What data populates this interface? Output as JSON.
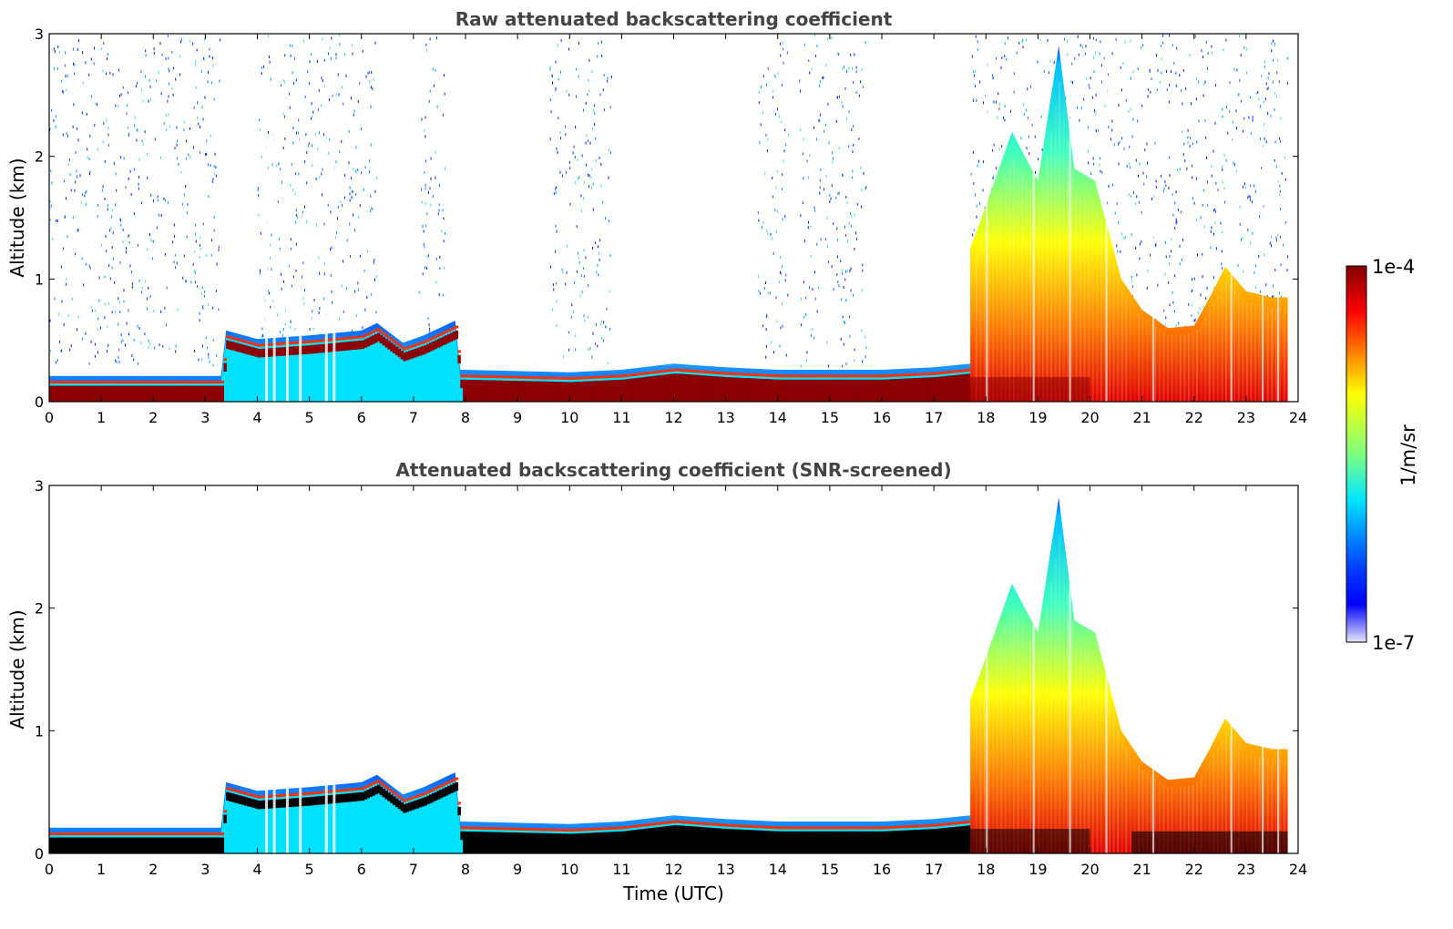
{
  "chart_data": [
    {
      "type": "heatmap",
      "title": "Raw attenuated backscattering coefficient",
      "xlabel": "",
      "ylabel": "Altitude (km)",
      "xlim": [
        0,
        24
      ],
      "ylim": [
        0,
        3
      ],
      "xticks": [
        "0",
        "1",
        "2",
        "3",
        "4",
        "5",
        "6",
        "7",
        "8",
        "9",
        "10",
        "11",
        "12",
        "13",
        "14",
        "15",
        "16",
        "17",
        "18",
        "19",
        "20",
        "21",
        "22",
        "23",
        "24"
      ],
      "yticks": [
        "0",
        "1",
        "2",
        "3"
      ],
      "boundary_layer_km": [
        [
          0,
          0.15
        ],
        [
          3.3,
          0.15
        ],
        [
          3.4,
          0.52
        ],
        [
          4.0,
          0.45
        ],
        [
          5.0,
          0.48
        ],
        [
          6.0,
          0.52
        ],
        [
          6.3,
          0.58
        ],
        [
          6.8,
          0.42
        ],
        [
          7.2,
          0.48
        ],
        [
          7.8,
          0.6
        ],
        [
          7.9,
          0.2
        ],
        [
          10,
          0.18
        ],
        [
          11,
          0.2
        ],
        [
          12,
          0.25
        ],
        [
          13,
          0.22
        ],
        [
          14,
          0.2
        ],
        [
          15,
          0.2
        ],
        [
          16,
          0.2
        ],
        [
          17,
          0.22
        ],
        [
          17.7,
          0.25
        ]
      ],
      "plume_top_km": [
        [
          17.7,
          1.25
        ],
        [
          18.0,
          1.6
        ],
        [
          18.5,
          2.2
        ],
        [
          19.0,
          1.8
        ],
        [
          19.4,
          2.9
        ],
        [
          19.7,
          1.9
        ],
        [
          20.1,
          1.8
        ],
        [
          20.6,
          1.0
        ],
        [
          21.0,
          0.75
        ],
        [
          21.5,
          0.6
        ],
        [
          22.0,
          0.62
        ],
        [
          22.3,
          0.85
        ],
        [
          22.6,
          1.1
        ],
        [
          23.0,
          0.9
        ],
        [
          23.5,
          0.85
        ],
        [
          23.8,
          0.85
        ]
      ],
      "noise_columns_hours": [
        [
          0,
          3.3
        ],
        [
          4.0,
          6.3
        ],
        [
          7.1,
          7.6
        ],
        [
          9.6,
          10.8
        ],
        [
          13.6,
          14.2
        ],
        [
          14.4,
          15.7
        ],
        [
          17.7,
          23.8
        ]
      ]
    },
    {
      "type": "heatmap",
      "title": "Attenuated backscattering coefficient (SNR-screened)",
      "xlabel": "Time (UTC)",
      "ylabel": "Altitude (km)",
      "xlim": [
        0,
        24
      ],
      "ylim": [
        0,
        3
      ],
      "xticks": [
        "0",
        "1",
        "2",
        "3",
        "4",
        "5",
        "6",
        "7",
        "8",
        "9",
        "10",
        "11",
        "12",
        "13",
        "14",
        "15",
        "16",
        "17",
        "18",
        "19",
        "20",
        "21",
        "22",
        "23",
        "24"
      ],
      "yticks": [
        "0",
        "1",
        "2",
        "3"
      ],
      "boundary_layer_km": [
        [
          0,
          0.15
        ],
        [
          3.3,
          0.15
        ],
        [
          3.4,
          0.52
        ],
        [
          4.0,
          0.45
        ],
        [
          5.0,
          0.48
        ],
        [
          6.0,
          0.52
        ],
        [
          6.3,
          0.58
        ],
        [
          6.8,
          0.42
        ],
        [
          7.2,
          0.48
        ],
        [
          7.8,
          0.6
        ],
        [
          7.9,
          0.2
        ],
        [
          10,
          0.18
        ],
        [
          11,
          0.2
        ],
        [
          12,
          0.25
        ],
        [
          13,
          0.22
        ],
        [
          14,
          0.2
        ],
        [
          15,
          0.2
        ],
        [
          16,
          0.2
        ],
        [
          17,
          0.22
        ],
        [
          17.7,
          0.25
        ]
      ],
      "plume_top_km": [
        [
          17.7,
          1.25
        ],
        [
          18.0,
          1.6
        ],
        [
          18.5,
          2.2
        ],
        [
          19.0,
          1.8
        ],
        [
          19.4,
          2.9
        ],
        [
          19.7,
          1.9
        ],
        [
          20.1,
          1.8
        ],
        [
          20.6,
          1.0
        ],
        [
          21.0,
          0.75
        ],
        [
          21.5,
          0.6
        ],
        [
          22.0,
          0.62
        ],
        [
          22.3,
          0.85
        ],
        [
          22.6,
          1.1
        ],
        [
          23.0,
          0.9
        ],
        [
          23.5,
          0.85
        ],
        [
          23.8,
          0.85
        ]
      ],
      "saturated_color": "#000000"
    }
  ],
  "colorbar": {
    "label": "1/m/sr",
    "max_label": "1e-4",
    "min_label": "1e-7",
    "scale": "log",
    "range": [
      1e-07,
      0.0001
    ],
    "colormap": "jet"
  }
}
